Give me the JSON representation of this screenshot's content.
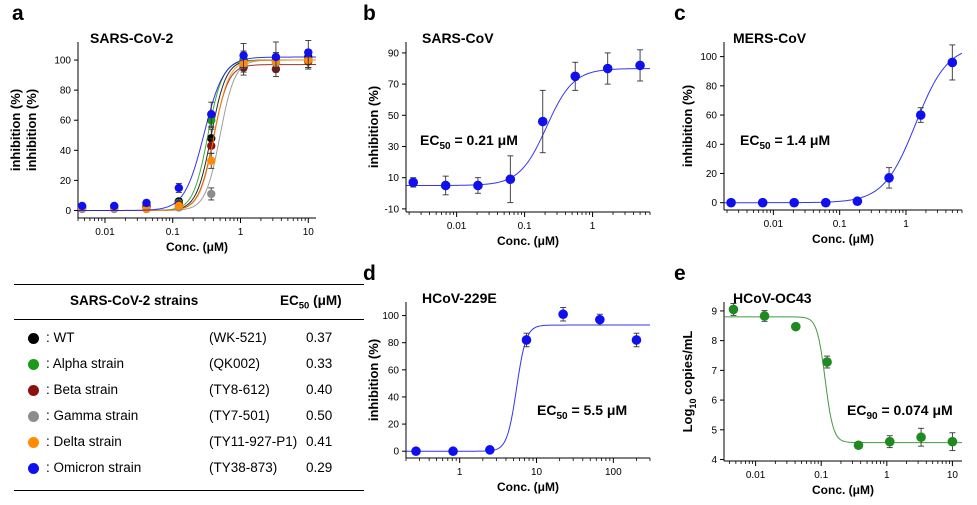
{
  "panel_letters": [
    "a",
    "b",
    "c",
    "d",
    "e"
  ],
  "table": {
    "header_strains": "SARS-CoV-2 strains",
    "header_ec_main": "EC",
    "header_ec_sub": "50",
    "header_ec_unit": " (μM)",
    "rows": [
      {
        "name": ": WT",
        "code": "(WK-521)",
        "value": "0.37",
        "color": "#000000"
      },
      {
        "name": ": Alpha strain",
        "code": "(QK002)",
        "value": "0.33",
        "color": "#1a9a1a"
      },
      {
        "name": ": Beta strain",
        "code": "(TY8-612)",
        "value": "0.40",
        "color": "#8b1010"
      },
      {
        "name": ": Gamma strain",
        "code": "(TY7-501)",
        "value": "0.50",
        "color": "#8c8c8c"
      },
      {
        "name": ": Delta strain",
        "code": "(TY11-927-P1)",
        "value": "0.41",
        "color": "#ff8c00"
      },
      {
        "name": ": Omicron strain",
        "code": "(TY38-873)",
        "value": "0.29",
        "color": "#1010ee"
      }
    ]
  },
  "chart_data": [
    {
      "id": "a",
      "type": "scatter",
      "title": "SARS-CoV-2",
      "xlabel": "Conc. (μM)",
      "ylabel": "inhibition (%)",
      "ylabel2": "inhibition (%)",
      "xscale": "log",
      "xlim": [
        0.004,
        13
      ],
      "ylim": [
        -5,
        112
      ],
      "xticks": [
        0.01,
        0.1,
        1,
        10
      ],
      "xticklabels": [
        "0.01",
        "0.1",
        "1",
        "10"
      ],
      "yticks": [
        0,
        20,
        40,
        60,
        80,
        100
      ],
      "yticklabels": [
        "0",
        "20",
        "40",
        "60",
        "80",
        "100"
      ],
      "series": [
        {
          "name": "WT",
          "color": "#000000",
          "ec50": 0.37,
          "hill": 4,
          "top": 100,
          "x": [
            0.0046,
            0.0137,
            0.041,
            0.123,
            0.37,
            1.11,
            3.33,
            10
          ],
          "y": [
            2,
            2,
            3,
            6,
            48,
            100,
            100,
            102
          ],
          "err": [
            1,
            1,
            1,
            2,
            6,
            6,
            5,
            5
          ]
        },
        {
          "name": "Alpha strain",
          "color": "#1a9a1a",
          "ec50": 0.33,
          "hill": 4,
          "top": 100,
          "x": [
            0.0046,
            0.0137,
            0.041,
            0.123,
            0.37,
            1.11,
            3.33,
            10
          ],
          "y": [
            2,
            2,
            2,
            5,
            60,
            100,
            99,
            100
          ],
          "err": [
            1,
            1,
            1,
            2,
            5,
            5,
            5,
            5
          ]
        },
        {
          "name": "Beta strain",
          "color": "#8b1010",
          "ec50": 0.4,
          "hill": 4,
          "top": 97,
          "x": [
            0.0046,
            0.0137,
            0.041,
            0.123,
            0.37,
            1.11,
            3.33,
            10
          ],
          "y": [
            2,
            2,
            2,
            4,
            43,
            95,
            94,
            99
          ],
          "err": [
            1,
            1,
            1,
            2,
            5,
            5,
            5,
            5
          ]
        },
        {
          "name": "Gamma strain",
          "color": "#8c8c8c",
          "ec50": 0.5,
          "hill": 4,
          "top": 100,
          "x": [
            0.0046,
            0.0137,
            0.041,
            0.123,
            0.37,
            1.11,
            3.33,
            10
          ],
          "y": [
            1,
            1,
            1,
            2,
            11,
            97,
            98,
            100
          ],
          "err": [
            1,
            1,
            1,
            1,
            4,
            5,
            5,
            5
          ]
        },
        {
          "name": "Delta strain",
          "color": "#ff8c00",
          "ec50": 0.41,
          "hill": 4,
          "top": 100,
          "x": [
            0.0046,
            0.0137,
            0.041,
            0.123,
            0.37,
            1.11,
            3.33,
            10
          ],
          "y": [
            2,
            2,
            1,
            3,
            33,
            98,
            99,
            100
          ],
          "err": [
            1,
            1,
            1,
            2,
            5,
            5,
            5,
            5
          ]
        },
        {
          "name": "Omicron strain",
          "color": "#1010ee",
          "ec50": 0.29,
          "hill": 3,
          "top": 102,
          "x": [
            0.0046,
            0.0137,
            0.041,
            0.123,
            0.37,
            1.11,
            3.33,
            10
          ],
          "y": [
            3,
            3,
            5,
            15,
            64,
            103,
            102,
            105
          ],
          "err": [
            1,
            1,
            2,
            3,
            8,
            8,
            10,
            8
          ]
        }
      ]
    },
    {
      "id": "b",
      "type": "scatter",
      "title": "SARS-CoV",
      "xlabel": "Conc. (μM)",
      "ylabel": "inhibition (%)",
      "annotation_main": "EC",
      "annotation_sub": "50",
      "annotation_rest": " = 0.21 μM",
      "xscale": "log",
      "xlim": [
        0.0018,
        7
      ],
      "ylim": [
        -12,
        97
      ],
      "xticks": [
        0.01,
        0.1,
        1
      ],
      "xticklabels": [
        "0.01",
        "0.1",
        "1"
      ],
      "yticks": [
        -10,
        10,
        30,
        50,
        70,
        90
      ],
      "yticklabels": [
        "-10",
        "10",
        "30",
        "50",
        "70",
        "90"
      ],
      "series": [
        {
          "name": "SARS-CoV",
          "color": "#1010ee",
          "ec50": 0.21,
          "hill": 2.2,
          "bottom": 5,
          "top": 80,
          "x": [
            0.0023,
            0.0069,
            0.0206,
            0.0617,
            0.185,
            0.556,
            1.67,
            5
          ],
          "y": [
            7,
            5,
            5,
            9,
            46,
            75,
            80,
            82
          ],
          "err": [
            3,
            6,
            5,
            15,
            20,
            9,
            10,
            10
          ]
        }
      ]
    },
    {
      "id": "c",
      "type": "scatter",
      "title": "MERS-CoV",
      "xlabel": "Conc. (μM)",
      "ylabel": "inhibition (%)",
      "annotation_main": "EC",
      "annotation_sub": "50",
      "annotation_rest": " = 1.4 μM",
      "xscale": "log",
      "xlim": [
        0.0018,
        7
      ],
      "ylim": [
        -5,
        110
      ],
      "xticks": [
        0.01,
        0.1,
        1
      ],
      "xticklabels": [
        "0.01",
        "0.1",
        "1"
      ],
      "yticks": [
        0,
        20,
        40,
        60,
        80,
        100
      ],
      "yticklabels": [
        "0",
        "20",
        "40",
        "60",
        "80",
        "100"
      ],
      "series": [
        {
          "name": "MERS-CoV",
          "color": "#1010ee",
          "ec50": 1.4,
          "hill": 1.8,
          "bottom": 0,
          "top": 108,
          "x": [
            0.0023,
            0.0069,
            0.0206,
            0.0617,
            0.185,
            0.556,
            1.67,
            5
          ],
          "y": [
            0,
            0,
            0,
            0,
            1,
            17,
            60,
            96
          ],
          "err": [
            0,
            0,
            0,
            0,
            1,
            7,
            5,
            12
          ]
        }
      ]
    },
    {
      "id": "d",
      "type": "scatter",
      "title": "HCoV-229E",
      "xlabel": "Conc. (μM)",
      "ylabel": "inhibition (%)",
      "annotation_main": "EC",
      "annotation_sub": "50",
      "annotation_rest": " = 5.5 μM",
      "xscale": "log",
      "xlim": [
        0.2,
        300
      ],
      "ylim": [
        -5,
        110
      ],
      "xticks": [
        1,
        10,
        100
      ],
      "xticklabels": [
        "1",
        "10",
        "100"
      ],
      "yticks": [
        0,
        20,
        40,
        60,
        80,
        100
      ],
      "yticklabels": [
        "0",
        "20",
        "40",
        "60",
        "80",
        "100"
      ],
      "series": [
        {
          "name": "HCoV-229E",
          "color": "#1010ee",
          "ec50": 5.5,
          "hill": 7,
          "bottom": 0,
          "top": 93,
          "x": [
            0.27,
            0.82,
            2.47,
            7.4,
            22.2,
            66.7,
            200
          ],
          "y": [
            0,
            0,
            1,
            82,
            101,
            97,
            82
          ],
          "err": [
            1,
            1,
            1,
            5,
            5,
            4,
            5
          ]
        }
      ]
    },
    {
      "id": "e",
      "type": "scatter",
      "title": "HCoV-OC43",
      "xlabel": "Conc. (μM)",
      "ylabel": "Log10 copies/mL",
      "ylabel_main": "Log",
      "ylabel_sub": "10",
      "ylabel_rest": " copies/mL",
      "annotation_main": "EC",
      "annotation_sub": "90",
      "annotation_rest": " = 0.074 μM",
      "xscale": "log",
      "xlim": [
        0.0033,
        14
      ],
      "ylim": [
        3.95,
        9.3
      ],
      "xticks": [
        0.01,
        0.1,
        1,
        10
      ],
      "xticklabels": [
        "0.01",
        "0.1",
        "1",
        "10"
      ],
      "yticks": [
        4,
        5,
        6,
        7,
        8,
        9
      ],
      "yticklabels": [
        "4",
        "5",
        "6",
        "7",
        "8",
        "9"
      ],
      "series": [
        {
          "name": "HCoV-OC43",
          "color": "#1f8a1f",
          "ec50": 0.115,
          "hill": 7,
          "bottom": 4.57,
          "top": 8.8,
          "x": [
            0.0046,
            0.0137,
            0.041,
            0.123,
            0.37,
            1.11,
            3.33,
            10
          ],
          "y": [
            9.05,
            8.83,
            8.47,
            7.28,
            4.48,
            4.6,
            4.75,
            4.6
          ],
          "err": [
            0.2,
            0.18,
            0.08,
            0.2,
            0.05,
            0.2,
            0.3,
            0.3
          ]
        }
      ]
    }
  ]
}
